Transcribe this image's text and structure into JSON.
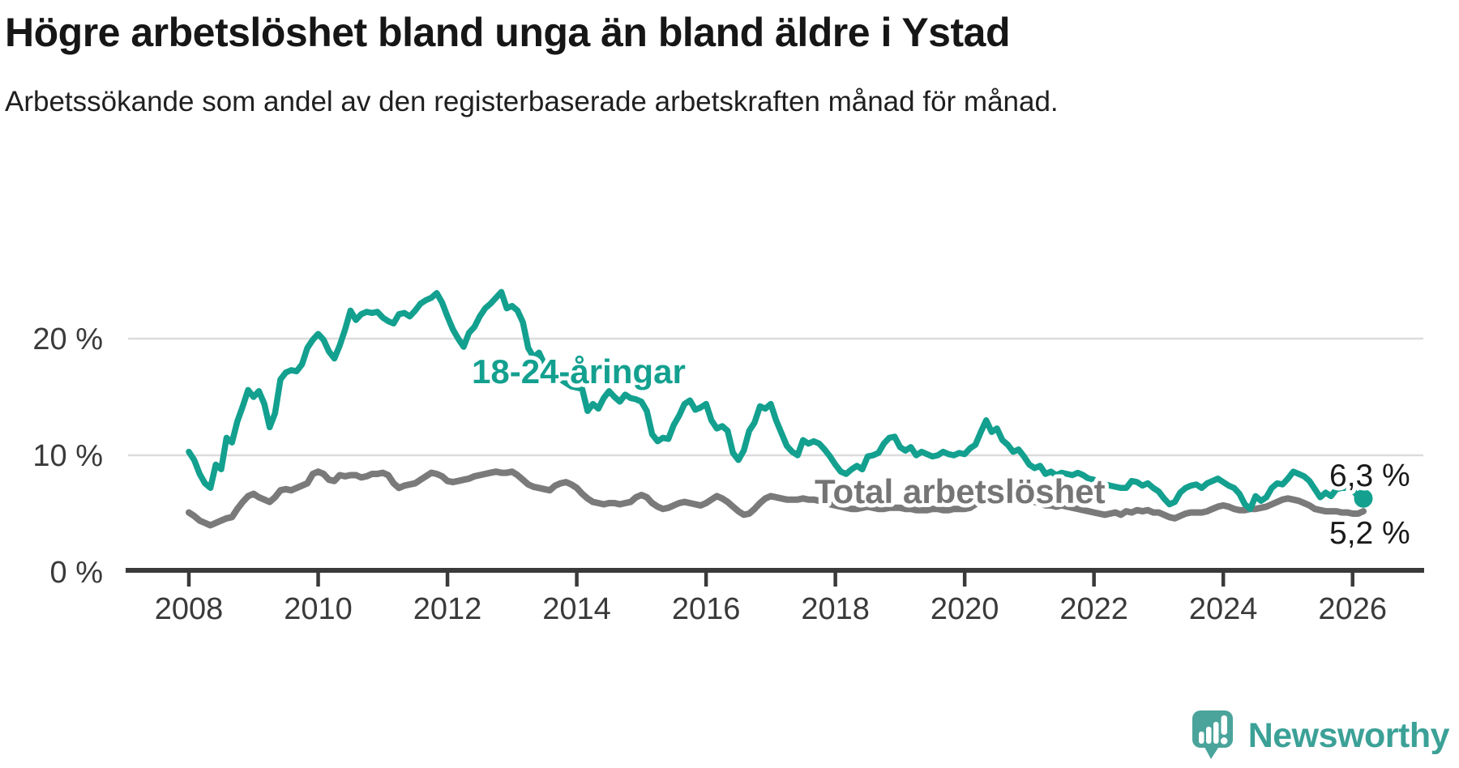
{
  "title": "Högre arbetslöshet bland unga än bland äldre i Ystad",
  "subtitle": "Arbetssökande som andel av den registerbaserade arbetskraften månad för månad.",
  "logo": {
    "name": "Newsworthy",
    "icon": "newsworthy-speech-bubble-chart-icon"
  },
  "colors": {
    "youth": "#13a08f",
    "total_line": "#7a7a7a",
    "total_label": "#757575",
    "grid": "#dcdcdc",
    "axis": "#3a3a3a",
    "tick_label": "#3a3a3a",
    "value_label": "#1a1a1a",
    "logo_icon": "#4aa49b",
    "logo_text": "#3ba197"
  },
  "chart_data": {
    "type": "line",
    "title": "Högre arbetslöshet bland unga än bland äldre i Ystad",
    "subtitle": "Arbetssökande som andel av den registerbaserade arbetskraften månad för månad.",
    "x_unit": "month",
    "x_start": "2008-01",
    "x_end": "2026-03",
    "x_tick_labels": [
      "2008",
      "2010",
      "2012",
      "2014",
      "2016",
      "2018",
      "2020",
      "2022",
      "2024",
      "2026"
    ],
    "y_ticks": [
      0,
      10,
      20
    ],
    "y_tick_labels": [
      "0 %",
      "10 %",
      "20 %"
    ],
    "ylim": [
      0,
      26.5
    ],
    "grid": "horizontal-only",
    "legend": "inline-labels",
    "series": [
      {
        "name": "18-24-åringar",
        "inline_label": "18-24-åringar",
        "end_value": 6.3,
        "end_value_label": "6,3 %",
        "color": "#13a08f",
        "values": [
          10.3,
          9.6,
          8.4,
          7.6,
          7.2,
          9.2,
          8.8,
          11.5,
          11.1,
          12.9,
          14.2,
          15.6,
          15.0,
          15.5,
          14.4,
          12.4,
          13.6,
          16.5,
          17.1,
          17.3,
          17.2,
          17.8,
          19.2,
          19.9,
          20.4,
          19.9,
          18.9,
          18.3,
          19.4,
          20.8,
          22.4,
          21.6,
          22.1,
          22.3,
          22.2,
          22.3,
          21.8,
          21.5,
          21.3,
          22.1,
          22.2,
          21.9,
          22.4,
          23.0,
          23.3,
          23.5,
          23.9,
          23.1,
          21.9,
          20.8,
          20.0,
          19.3,
          20.5,
          21.0,
          21.9,
          22.6,
          23.0,
          23.5,
          24.0,
          22.6,
          22.8,
          22.4,
          21.4,
          19.2,
          18.4,
          18.8,
          17.8,
          18.0,
          17.0,
          16.5,
          16.2,
          15.9,
          15.8,
          15.7,
          13.8,
          14.4,
          14.0,
          14.9,
          15.5,
          15.0,
          14.6,
          15.2,
          14.9,
          14.8,
          14.6,
          13.8,
          11.8,
          11.2,
          11.5,
          11.4,
          12.6,
          13.4,
          14.4,
          14.7,
          13.9,
          14.1,
          14.4,
          13.0,
          12.3,
          12.5,
          12.1,
          10.2,
          9.6,
          10.4,
          12.1,
          12.8,
          14.2,
          14.0,
          14.4,
          13.0,
          11.9,
          10.8,
          10.3,
          10.0,
          11.3,
          11.0,
          11.2,
          11.0,
          10.5,
          9.9,
          9.2,
          8.6,
          8.4,
          8.8,
          9.1,
          8.8,
          9.9,
          10.0,
          10.2,
          11.0,
          11.5,
          11.6,
          10.7,
          10.4,
          10.7,
          10.0,
          10.3,
          10.1,
          9.9,
          10.0,
          10.3,
          10.1,
          10.0,
          10.2,
          10.1,
          10.6,
          10.9,
          12.0,
          13.0,
          12.0,
          12.3,
          11.3,
          10.9,
          10.3,
          10.5,
          9.9,
          9.2,
          8.9,
          9.1,
          8.4,
          8.6,
          8.3,
          8.5,
          8.4,
          8.3,
          8.5,
          8.3,
          8.0,
          7.9,
          7.7,
          7.5,
          7.4,
          7.3,
          7.2,
          7.2,
          7.8,
          7.7,
          7.4,
          7.6,
          7.2,
          6.9,
          6.3,
          5.8,
          6.0,
          6.8,
          7.2,
          7.4,
          7.5,
          7.2,
          7.6,
          7.8,
          8.0,
          7.7,
          7.4,
          7.2,
          6.7,
          5.8,
          5.4,
          6.5,
          6.1,
          6.4,
          7.2,
          7.6,
          7.5,
          8.0,
          8.6,
          8.4,
          8.2,
          7.8,
          7.1,
          6.4,
          6.8,
          6.5,
          7.1,
          7.2,
          7.2,
          7.0,
          6.5,
          6.3
        ]
      },
      {
        "name": "Total arbetslöshet",
        "inline_label": "Total arbetslöshet",
        "end_value": 5.2,
        "end_value_label": "5,2 %",
        "color": "#7a7a7a",
        "values": [
          5.1,
          4.8,
          4.4,
          4.2,
          4.0,
          4.2,
          4.4,
          4.6,
          4.7,
          5.4,
          6.0,
          6.5,
          6.7,
          6.4,
          6.2,
          6.0,
          6.4,
          7.0,
          7.1,
          7.0,
          7.2,
          7.4,
          7.6,
          8.4,
          8.6,
          8.4,
          7.9,
          7.8,
          8.3,
          8.2,
          8.3,
          8.3,
          8.1,
          8.2,
          8.4,
          8.4,
          8.5,
          8.3,
          7.6,
          7.2,
          7.4,
          7.5,
          7.6,
          7.9,
          8.2,
          8.5,
          8.4,
          8.2,
          7.8,
          7.7,
          7.8,
          7.9,
          8.0,
          8.2,
          8.3,
          8.4,
          8.5,
          8.6,
          8.5,
          8.5,
          8.6,
          8.3,
          7.9,
          7.5,
          7.3,
          7.2,
          7.1,
          7.0,
          7.4,
          7.6,
          7.7,
          7.5,
          7.2,
          6.7,
          6.3,
          6.0,
          5.9,
          5.8,
          5.9,
          5.9,
          5.8,
          5.9,
          6.0,
          6.4,
          6.6,
          6.4,
          5.9,
          5.6,
          5.4,
          5.5,
          5.7,
          5.9,
          6.0,
          5.9,
          5.8,
          5.7,
          5.9,
          6.2,
          6.5,
          6.3,
          6.0,
          5.6,
          5.2,
          4.9,
          5.0,
          5.4,
          5.9,
          6.3,
          6.5,
          6.4,
          6.3,
          6.2,
          6.2,
          6.2,
          6.3,
          6.2,
          6.2,
          6.1,
          6.0,
          5.8,
          5.7,
          5.6,
          5.5,
          5.4,
          5.4,
          5.5,
          5.6,
          5.5,
          5.4,
          5.4,
          5.5,
          5.5,
          5.5,
          5.4,
          5.4,
          5.3,
          5.3,
          5.3,
          5.4,
          5.4,
          5.3,
          5.3,
          5.4,
          5.4,
          5.4,
          5.5,
          5.8,
          6.4,
          6.8,
          6.9,
          7.0,
          6.8,
          6.6,
          6.4,
          6.3,
          6.2,
          6.1,
          6.0,
          5.9,
          5.7,
          5.7,
          5.6,
          5.7,
          5.6,
          5.5,
          5.4,
          5.3,
          5.2,
          5.1,
          5.0,
          4.9,
          5.0,
          5.1,
          4.9,
          5.2,
          5.1,
          5.3,
          5.2,
          5.3,
          5.1,
          5.1,
          4.9,
          4.7,
          4.6,
          4.8,
          5.0,
          5.1,
          5.1,
          5.1,
          5.2,
          5.4,
          5.6,
          5.7,
          5.6,
          5.4,
          5.3,
          5.3,
          5.4,
          5.4,
          5.5,
          5.6,
          5.8,
          6.0,
          6.2,
          6.3,
          6.2,
          6.1,
          5.9,
          5.7,
          5.4,
          5.3,
          5.2,
          5.2,
          5.2,
          5.1,
          5.1,
          5.0,
          5.0,
          5.2
        ]
      }
    ]
  }
}
